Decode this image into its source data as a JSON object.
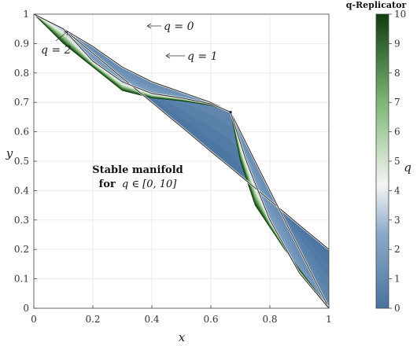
{
  "chart_data": {
    "type": "area",
    "xlabel": "x",
    "ylabel": "y",
    "xlim": [
      0,
      1
    ],
    "ylim": [
      0,
      1
    ],
    "xticks": [
      0,
      0.2,
      0.4,
      0.6,
      0.8,
      1
    ],
    "xtick_labels": [
      "0",
      "0.2",
      "0.4",
      "0.6",
      "0.8",
      "1"
    ],
    "yticks": [
      0,
      0.1,
      0.2,
      0.3,
      0.4,
      0.5,
      0.6,
      0.7,
      0.8,
      0.9,
      1
    ],
    "ytick_labels": [
      "0",
      "0.1",
      "0.2",
      "0.3",
      "0.4",
      "0.5",
      "0.6",
      "0.7",
      "0.8",
      "0.9",
      "1"
    ],
    "grid": true,
    "annotation_line1": "Stable manifold",
    "annotation_line2_prefix": "for",
    "annotation_line2_math": "q ∈ [0, 10]",
    "curve_labels": [
      {
        "text": "q = 0",
        "q": 0
      },
      {
        "text": "q = 1",
        "q": 1
      },
      {
        "text": "q = 2",
        "q": 2
      }
    ],
    "equilibrium": [
      0.667,
      0.667
    ],
    "colorbar": {
      "title": "q-Replicator",
      "label": "q",
      "range": [
        0,
        10
      ],
      "ticks": [
        "0",
        "1",
        "2",
        "3",
        "4",
        "5",
        "6",
        "7",
        "8",
        "9",
        "10"
      ],
      "colormap": [
        "#4a73a0",
        "#8aa9c8",
        "#f4f5f3",
        "#7db775",
        "#0f3d0f"
      ]
    },
    "series": [
      {
        "q": 0,
        "points": [
          [
            0,
            1
          ],
          [
            0.1,
            0.95
          ],
          [
            0.2,
            0.867
          ],
          [
            0.3,
            0.783
          ],
          [
            0.4,
            0.7
          ],
          [
            0.5,
            0.617
          ],
          [
            0.6,
            0.533
          ],
          [
            0.667,
            0.478
          ],
          [
            0.8,
            0.367
          ],
          [
            0.9,
            0.283
          ],
          [
            1,
            0.2
          ]
        ]
      },
      {
        "q": 1,
        "points": [
          [
            0,
            1
          ],
          [
            0.1,
            0.95
          ],
          [
            0.2,
            0.89
          ],
          [
            0.3,
            0.82
          ],
          [
            0.4,
            0.77
          ],
          [
            0.5,
            0.735
          ],
          [
            0.6,
            0.7
          ],
          [
            0.667,
            0.667
          ],
          [
            0.75,
            0.5
          ],
          [
            0.85,
            0.3
          ],
          [
            0.95,
            0.1
          ],
          [
            1,
            0
          ]
        ]
      },
      {
        "q": 2,
        "points": [
          [
            0,
            1
          ],
          [
            0.1,
            0.95
          ],
          [
            0.2,
            0.84
          ],
          [
            0.3,
            0.77
          ],
          [
            0.4,
            0.73
          ],
          [
            0.5,
            0.715
          ],
          [
            0.6,
            0.695
          ],
          [
            0.667,
            0.667
          ],
          [
            0.72,
            0.5
          ],
          [
            0.8,
            0.3
          ],
          [
            0.9,
            0.12
          ],
          [
            1,
            0
          ]
        ]
      },
      {
        "q": 10,
        "points": [
          [
            0,
            1
          ],
          [
            0.1,
            0.9
          ],
          [
            0.2,
            0.82
          ],
          [
            0.3,
            0.74
          ],
          [
            0.4,
            0.715
          ],
          [
            0.5,
            0.705
          ],
          [
            0.6,
            0.69
          ],
          [
            0.667,
            0.667
          ],
          [
            0.7,
            0.5
          ],
          [
            0.75,
            0.35
          ],
          [
            0.85,
            0.2
          ],
          [
            1,
            0
          ]
        ]
      }
    ]
  }
}
